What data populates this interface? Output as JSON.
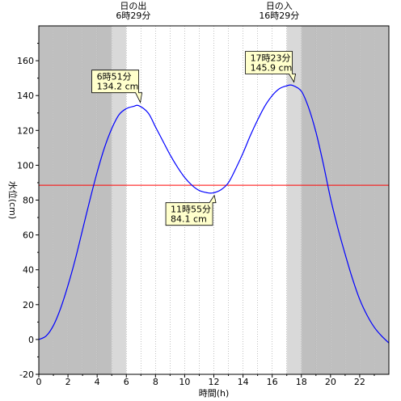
{
  "chart_data": {
    "type": "line",
    "xlabel": "時間(h)",
    "ylabel": "水位(cm)",
    "xlim": [
      0,
      24
    ],
    "ylim": [
      -20,
      180
    ],
    "x_ticks": [
      0,
      2,
      4,
      6,
      8,
      10,
      12,
      14,
      16,
      18,
      20,
      22
    ],
    "y_ticks": [
      -20,
      0,
      20,
      40,
      60,
      80,
      100,
      120,
      140,
      160
    ],
    "grid": "vertical dotted every 1 h",
    "sunrise": {
      "title": "日の出",
      "time_label": "6時29分",
      "hour": 6.48
    },
    "sunset": {
      "title": "日の入",
      "time_label": "16時29分",
      "hour": 16.48
    },
    "twilight_morning": [
      5.0,
      6.0
    ],
    "twilight_evening": [
      17.0,
      18.0
    ],
    "reference_level": {
      "y": 88.5,
      "color": "#ff0000"
    },
    "series_color": "#0000ff",
    "x": [
      0,
      0.5,
      1,
      1.5,
      2,
      2.5,
      3,
      3.5,
      4,
      4.5,
      5,
      5.5,
      6,
      6.5,
      6.85,
      7.5,
      8,
      8.5,
      9,
      9.5,
      10,
      10.5,
      11,
      11.5,
      11.92,
      12.5,
      13,
      13.5,
      14,
      14.5,
      15,
      15.5,
      16,
      16.5,
      17,
      17.38,
      18,
      18.5,
      19,
      19.5,
      20,
      20.5,
      21,
      21.5,
      22,
      22.5,
      23,
      23.5,
      24
    ],
    "values": [
      0,
      2,
      8,
      18,
      31,
      46,
      63,
      80,
      96,
      110,
      121,
      129,
      132.5,
      133.8,
      134.2,
      130,
      122,
      114,
      106,
      99,
      93,
      88.5,
      85.5,
      84.3,
      84.1,
      86,
      90,
      98,
      107,
      117,
      126,
      134,
      140,
      144,
      145.6,
      145.9,
      142.5,
      133,
      119,
      101,
      81,
      64,
      49,
      35,
      23,
      14,
      7,
      2,
      -2
    ],
    "annotations": [
      {
        "time": "6時51分",
        "level": "134.2 cm",
        "x": 6.85,
        "y": 134.2
      },
      {
        "time": "11時55分",
        "level": "84.1 cm",
        "x": 11.92,
        "y": 84.1
      },
      {
        "time": "17時23分",
        "level": "145.9 cm",
        "x": 17.38,
        "y": 145.9
      }
    ]
  }
}
